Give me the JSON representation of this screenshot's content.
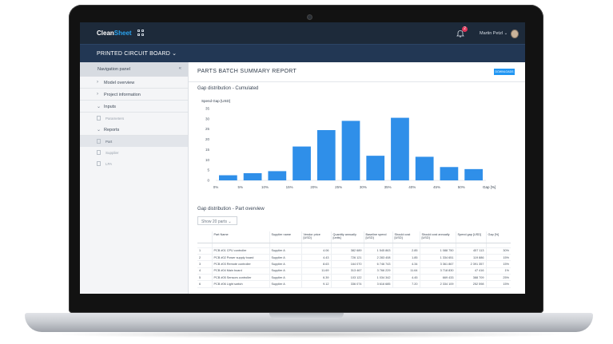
{
  "app": {
    "logo_part1": "Clean",
    "logo_part2": "Sheet",
    "notification_count": "2",
    "user_name": "Martin Petzl ⌄",
    "project_title": "PRINTED CIRCUIT BOARD ⌄"
  },
  "sidebar": {
    "header": "Navigation panel",
    "collapse_glyph": "«",
    "items": [
      {
        "label": "Model overview"
      },
      {
        "label": "Project information"
      },
      {
        "label": "Inputs"
      },
      {
        "label": "Reports"
      }
    ],
    "sub_parameters": "Parameters",
    "sub_reports": [
      "Part",
      "Supplier",
      "LPA"
    ]
  },
  "main": {
    "title": "PARTS BATCH SUMMARY REPORT",
    "download_label": "DOWNLOADS",
    "section_chart": "Gap distribution - Cumulated",
    "section_table": "Gap distribution - Part overview",
    "show_parts": "Show 20 parts ⌄"
  },
  "chart_data": {
    "type": "bar",
    "title": "Spend Gap [USD]",
    "xlabel": "Gap [%]",
    "ylabel": "Spend Gap [USD]",
    "ylim": [
      0,
      35
    ],
    "yticks": [
      "0",
      "5",
      "10",
      "15",
      "20",
      "25",
      "30",
      "35"
    ],
    "xticks": [
      "0%",
      "5%",
      "10%",
      "15%",
      "20%",
      "25%",
      "30%",
      "35%",
      "40%",
      "45%",
      "50%"
    ],
    "values": [
      2.5,
      3.5,
      4.5,
      16.5,
      24.5,
      29,
      12,
      30.5,
      11.5,
      6.5,
      5.5
    ],
    "color": "#2f8fe9"
  },
  "table": {
    "headers": [
      "",
      "Part Name",
      "Supplier name",
      "Vendor price [USD]",
      "Quantity annually [units]",
      "Baseline spend [USD]",
      "Should cost [USD]",
      "Should cost annually [USD]",
      "Spend gap [USD]",
      "Gap [%]"
    ],
    "rows": [
      [
        "1",
        "PCB #01 CPU controller",
        "Supplier A",
        "4.06",
        "382 689",
        "1 545 863",
        "2.85",
        "1 088 750",
        "457 113",
        "30%"
      ],
      [
        "2",
        "PCB #02 Power supply board",
        "Supplier A",
        "4.43",
        "726 121",
        "2 283 408",
        "1.85",
        "1 334 651",
        "119 886",
        "15%"
      ],
      [
        "3",
        "PCB #03 Remote controller",
        "Supplier A",
        "8.63",
        "164 070",
        "6 746 743",
        "4.34",
        "3 361 867",
        "2 391 357",
        "15%"
      ],
      [
        "4",
        "PCB #04 Main board",
        "Supplier A",
        "11.69",
        "313 467",
        "3 766 229",
        "11.64",
        "3 718 830",
        "47 416",
        "1%"
      ],
      [
        "5",
        "PCB #05 Sensors controller",
        "Supplier A",
        "6.39",
        "103 122",
        "1 034 342",
        "4.45",
        "669 433",
        "388 709",
        "25%"
      ],
      [
        "6",
        "PCB #06 Light switch",
        "Supplier A",
        "9.12",
        "336 074",
        "3 616 685",
        "7.20",
        "2 334 109",
        "252 598",
        "15%"
      ]
    ]
  }
}
